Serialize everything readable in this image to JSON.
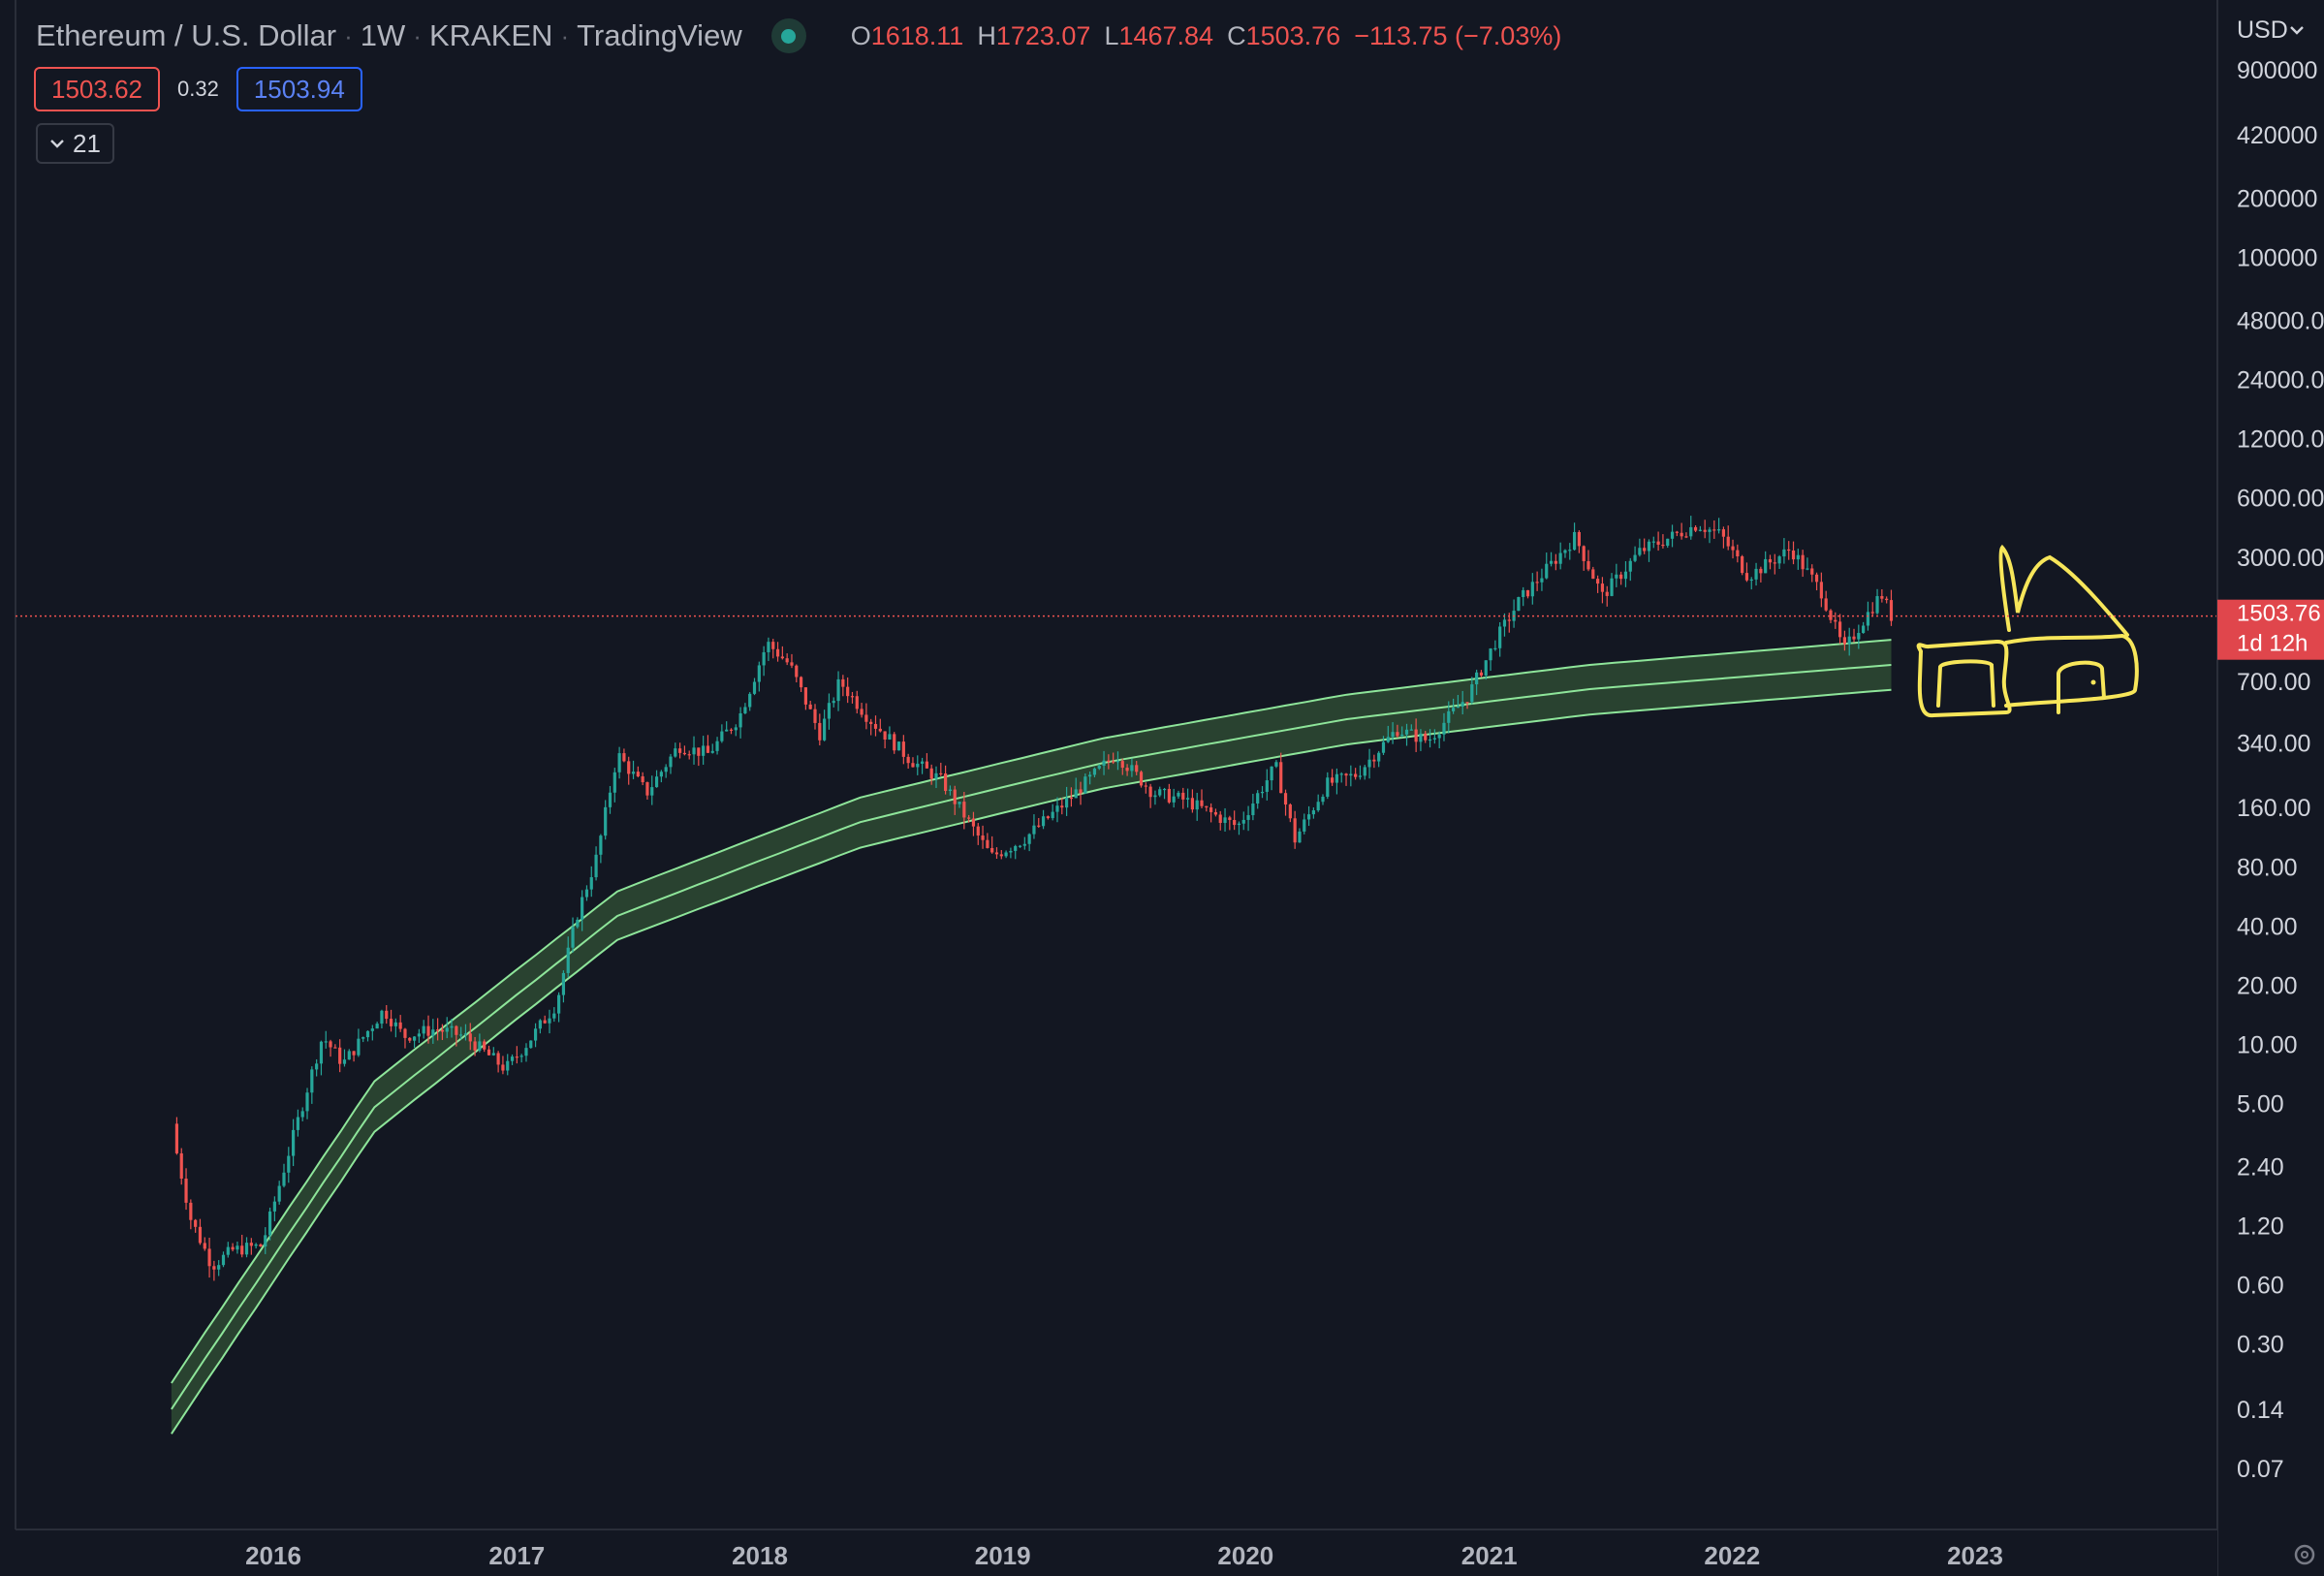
{
  "header": {
    "symbol": "Ethereum / U.S. Dollar",
    "interval": "1W",
    "exchange": "KRAKEN",
    "source": "TradingView",
    "ohlc": [
      {
        "key": "O",
        "value": "1618.11"
      },
      {
        "key": "H",
        "value": "1723.07"
      },
      {
        "key": "L",
        "value": "1467.84"
      },
      {
        "key": "C",
        "value": "1503.76"
      }
    ],
    "change": "−113.75 (−7.03%)"
  },
  "bid": "1503.62",
  "spread": "0.32",
  "ask": "1503.94",
  "indicator_label": "21",
  "currency": "USD",
  "current_price_label": "1503.76",
  "countdown_label": "1d 12h",
  "colors": {
    "background": "#131722",
    "up": "#26a69a",
    "down": "#ef5350",
    "band_line": "#8ee59a",
    "band_fill": "#2e4a33",
    "drawing": "#f7e65a"
  },
  "chart_data": {
    "type": "candlestick",
    "y_scale": "log",
    "ylim": [
      0.05,
      1200000
    ],
    "xlim": [
      "2015-07-15",
      "2023-12-31"
    ],
    "y_tick_labels": [
      "900000",
      "420000",
      "200000",
      "100000",
      "48000.0",
      "24000.0",
      "12000.0",
      "6000.00",
      "3000.00",
      "700.00",
      "340.00",
      "160.00",
      "80.00",
      "40.00",
      "20.00",
      "10.00",
      "5.00",
      "2.40",
      "1.20",
      "0.60",
      "0.30",
      "0.14",
      "0.07"
    ],
    "y_tick_values": [
      900000,
      420000,
      200000,
      100000,
      48000,
      24000,
      12000,
      6000,
      3000,
      700,
      340,
      160,
      80,
      40,
      20,
      10,
      5,
      2.4,
      1.2,
      0.6,
      0.3,
      0.14,
      0.07
    ],
    "x_tick_labels": [
      "2016",
      "2017",
      "2018",
      "2019",
      "2020",
      "2021",
      "2022",
      "2023"
    ],
    "x_tick_values": [
      "2016-01-01",
      "2017-01-01",
      "2018-01-01",
      "2019-01-01",
      "2020-01-01",
      "2021-01-01",
      "2022-01-01",
      "2023-01-01"
    ],
    "price_line": 1503.76,
    "series": [
      {
        "kind": "close_path",
        "points": [
          [
            "2015-08-09",
            2.8
          ],
          [
            "2015-08-30",
            1.3
          ],
          [
            "2015-10-01",
            0.75
          ],
          [
            "2015-11-01",
            0.9
          ],
          [
            "2015-12-15",
            0.95
          ],
          [
            "2016-02-01",
            3.5
          ],
          [
            "2016-03-15",
            11
          ],
          [
            "2016-04-15",
            8
          ],
          [
            "2016-06-15",
            15
          ],
          [
            "2016-07-15",
            11
          ],
          [
            "2016-09-01",
            12
          ],
          [
            "2016-10-15",
            11
          ],
          [
            "2016-12-15",
            7.5
          ],
          [
            "2017-01-15",
            10
          ],
          [
            "2017-03-01",
            16
          ],
          [
            "2017-04-01",
            45
          ],
          [
            "2017-05-01",
            90
          ],
          [
            "2017-06-01",
            300
          ],
          [
            "2017-07-15",
            190
          ],
          [
            "2017-09-01",
            330
          ],
          [
            "2017-10-15",
            300
          ],
          [
            "2017-12-01",
            460
          ],
          [
            "2018-01-12",
            1100
          ],
          [
            "2018-02-15",
            850
          ],
          [
            "2018-04-01",
            380
          ],
          [
            "2018-05-01",
            700
          ],
          [
            "2018-06-15",
            450
          ],
          [
            "2018-08-15",
            280
          ],
          [
            "2018-10-01",
            220
          ],
          [
            "2018-12-15",
            90
          ],
          [
            "2019-02-01",
            110
          ],
          [
            "2019-04-01",
            165
          ],
          [
            "2019-06-20",
            300
          ],
          [
            "2019-08-15",
            190
          ],
          [
            "2019-10-01",
            175
          ],
          [
            "2019-12-20",
            128
          ],
          [
            "2020-02-15",
            260
          ],
          [
            "2020-03-15",
            110
          ],
          [
            "2020-05-01",
            210
          ],
          [
            "2020-06-15",
            235
          ],
          [
            "2020-08-15",
            400
          ],
          [
            "2020-10-01",
            350
          ],
          [
            "2020-12-01",
            600
          ],
          [
            "2021-01-15",
            1200
          ],
          [
            "2021-02-15",
            1800
          ],
          [
            "2021-05-10",
            3800
          ],
          [
            "2021-06-20",
            1900
          ],
          [
            "2021-08-15",
            3200
          ],
          [
            "2021-11-10",
            4400
          ],
          [
            "2021-12-15",
            3900
          ],
          [
            "2022-01-25",
            2400
          ],
          [
            "2022-03-30",
            3300
          ],
          [
            "2022-05-15",
            2000
          ],
          [
            "2022-06-18",
            1000
          ],
          [
            "2022-07-15",
            1400
          ],
          [
            "2022-08-13",
            1950
          ],
          [
            "2022-08-28",
            1503.76
          ]
        ]
      },
      {
        "kind": "band",
        "lines": [
          {
            "name": "upper",
            "points": [
              [
                "2015-08-01",
                0.19
              ],
              [
                "2016-06-01",
                6.5
              ],
              [
                "2017-06-01",
                60
              ],
              [
                "2018-06-01",
                180
              ],
              [
                "2019-06-01",
                360
              ],
              [
                "2020-06-01",
                600
              ],
              [
                "2021-06-01",
                850
              ],
              [
                "2022-08-28",
                1140
              ]
            ]
          },
          {
            "name": "middle",
            "points": [
              [
                "2015-08-01",
                0.14
              ],
              [
                "2016-06-01",
                4.8
              ],
              [
                "2017-06-01",
                45
              ],
              [
                "2018-06-01",
                135
              ],
              [
                "2019-06-01",
                270
              ],
              [
                "2020-06-01",
                450
              ],
              [
                "2021-06-01",
                640
              ],
              [
                "2022-08-28",
                850
              ]
            ]
          },
          {
            "name": "lower",
            "points": [
              [
                "2015-08-01",
                0.105
              ],
              [
                "2016-06-01",
                3.6
              ],
              [
                "2017-06-01",
                34
              ],
              [
                "2018-06-01",
                100
              ],
              [
                "2019-06-01",
                200
              ],
              [
                "2020-06-01",
                335
              ],
              [
                "2021-06-01",
                475
              ],
              [
                "2022-08-28",
                635
              ]
            ]
          }
        ]
      }
    ]
  }
}
